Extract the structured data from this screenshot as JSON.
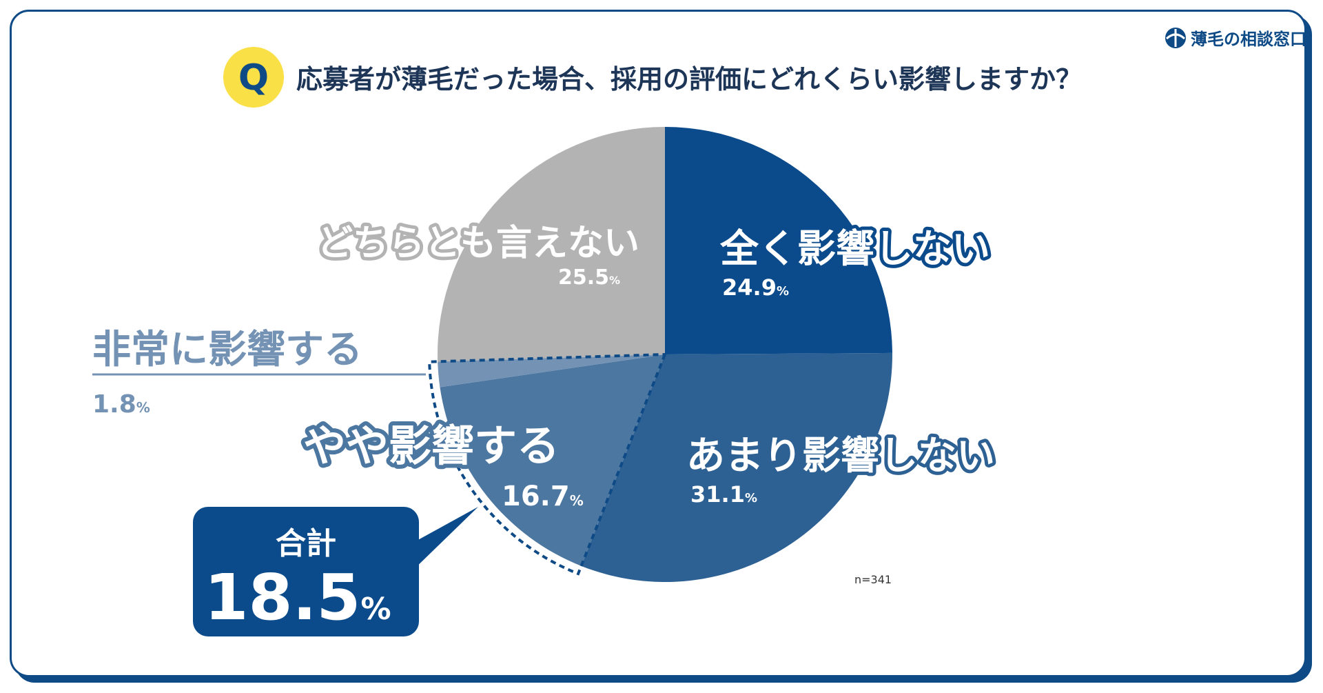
{
  "question": {
    "badge": "Q",
    "text": "応募者が薄毛だった場合、採用の評価にどれくらい影響しますか？"
  },
  "brand": {
    "name": "薄毛の相談窓口",
    "icon": "hair-logo-icon"
  },
  "callout": {
    "label": "合計",
    "value": "18.5",
    "unit": "%"
  },
  "sample_size": "n=341",
  "colors": {
    "navy": "#0b4b8c",
    "mid_blue": "#2e6193",
    "steel_blue": "#4c77a1",
    "light_steel": "#7392b4",
    "gray": "#b3b3b3",
    "yellow": "#f9e046"
  },
  "chart_data": {
    "type": "pie",
    "start": "12 o'clock, clockwise",
    "slices": [
      {
        "label": "全く影響しない",
        "value": 24.9,
        "value_text": "24.9",
        "unit": "%",
        "color": "#0b4b8c"
      },
      {
        "label": "あまり影響しない",
        "value": 31.1,
        "value_text": "31.1",
        "unit": "%",
        "color": "#2e6193"
      },
      {
        "label": "やや影響する",
        "value": 16.7,
        "value_text": "16.7",
        "unit": "%",
        "color": "#4c77a1"
      },
      {
        "label": "非常に影響する",
        "value": 1.8,
        "value_text": "1.8",
        "unit": "%",
        "color": "#7392b4"
      },
      {
        "label": "どちらとも言えない",
        "value": 25.5,
        "value_text": "25.5",
        "unit": "%",
        "color": "#b3b3b3"
      }
    ]
  }
}
